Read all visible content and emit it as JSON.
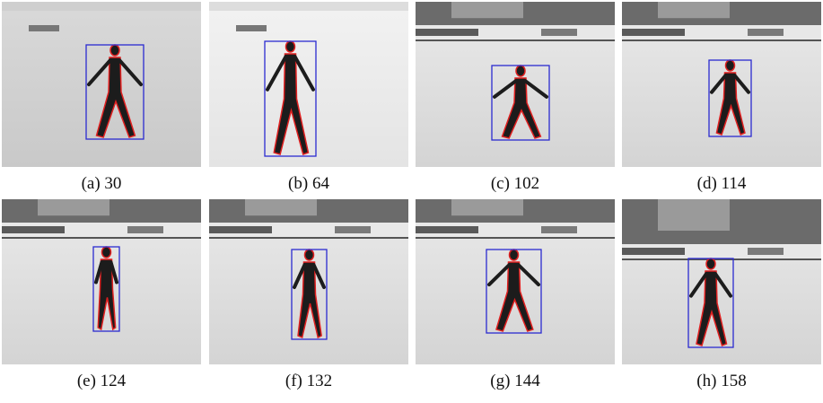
{
  "figure": {
    "panels": [
      {
        "caption": "(a) 30"
      },
      {
        "caption": "(b) 64"
      },
      {
        "caption": "(c) 102"
      },
      {
        "caption": "(d) 114"
      },
      {
        "caption": "(e) 124"
      },
      {
        "caption": "(f) 132"
      },
      {
        "caption": "(g) 144"
      },
      {
        "caption": "(h) 158"
      }
    ]
  }
}
